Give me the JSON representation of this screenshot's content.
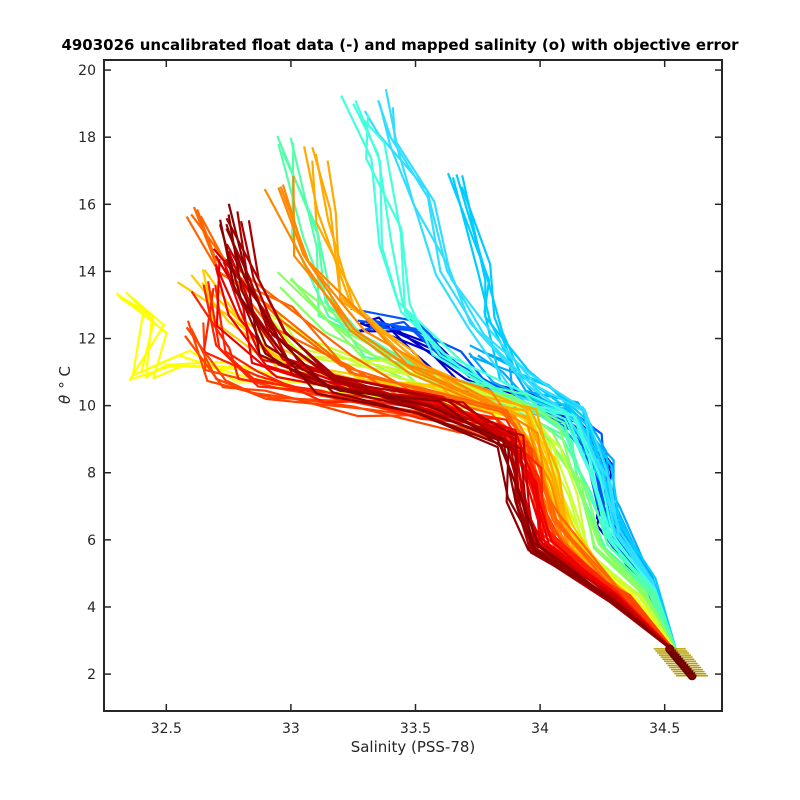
{
  "chart_data": {
    "type": "line",
    "title": "4903026 uncalibrated float data (-) and mapped salinity (o) with objective error",
    "xlabel": "Salinity (PSS-78)",
    "ylabel_symbol": "θ",
    "ylabel_unit": "° C",
    "xlim": [
      32.25,
      34.73
    ],
    "ylim": [
      0.9,
      20.3
    ],
    "x_ticks": [
      32.5,
      33,
      33.5,
      34,
      34.5
    ],
    "x_tick_labels": [
      "32.5",
      "33",
      "33.5",
      "34",
      "34.5"
    ],
    "y_ticks": [
      2,
      4,
      6,
      8,
      10,
      12,
      14,
      16,
      18,
      20
    ],
    "y_tick_labels": [
      "2",
      "4",
      "6",
      "8",
      "10",
      "12",
      "14",
      "16",
      "18",
      "20"
    ],
    "grid": false,
    "legend": "none",
    "colormap": "jet (profile index: early = blue, late = dark red)",
    "mapped_salinity_marker": {
      "color": "#8b0000",
      "error_bar_color": "#b8a000",
      "S_range": [
        34.52,
        34.61
      ],
      "theta_range": [
        1.95,
        2.75
      ]
    },
    "series": [
      {
        "color": "#0000cc",
        "points": [
          [
            33.25,
            12.2
          ],
          [
            33.4,
            12.4
          ],
          [
            33.55,
            11.6
          ],
          [
            33.7,
            10.8
          ],
          [
            33.95,
            10.0
          ],
          [
            34.15,
            9.5
          ],
          [
            34.25,
            8.3
          ],
          [
            34.25,
            6.5
          ],
          [
            34.4,
            4.8
          ],
          [
            34.55,
            2.6
          ]
        ]
      },
      {
        "color": "#0055ff",
        "points": [
          [
            33.3,
            12.6
          ],
          [
            33.5,
            12.2
          ],
          [
            33.65,
            11.3
          ],
          [
            33.85,
            10.3
          ],
          [
            34.05,
            9.8
          ],
          [
            34.2,
            8.9
          ],
          [
            34.25,
            7.0
          ],
          [
            34.42,
            4.9
          ],
          [
            34.55,
            2.6
          ]
        ]
      },
      {
        "color": "#00aaff",
        "points": [
          [
            33.75,
            11.5
          ],
          [
            33.85,
            11.0
          ],
          [
            33.95,
            10.2
          ],
          [
            34.1,
            9.9
          ],
          [
            34.25,
            8.6
          ],
          [
            34.3,
            6.8
          ],
          [
            34.45,
            4.9
          ],
          [
            34.55,
            2.6
          ]
        ]
      },
      {
        "color": "#00ccff",
        "points": [
          [
            33.65,
            16.8
          ],
          [
            33.75,
            14.0
          ],
          [
            33.8,
            12.5
          ],
          [
            33.9,
            11.0
          ],
          [
            34.0,
            10.5
          ],
          [
            34.15,
            9.7
          ],
          [
            34.25,
            8.2
          ],
          [
            34.3,
            6.5
          ],
          [
            34.45,
            4.8
          ],
          [
            34.55,
            2.6
          ]
        ]
      },
      {
        "color": "#33ddff",
        "points": [
          [
            33.35,
            19.1
          ],
          [
            33.4,
            18.0
          ],
          [
            33.55,
            16.2
          ],
          [
            33.6,
            14.0
          ],
          [
            33.75,
            12.2
          ],
          [
            33.95,
            10.6
          ],
          [
            34.15,
            9.6
          ],
          [
            34.25,
            8.0
          ],
          [
            34.3,
            6.2
          ],
          [
            34.45,
            4.7
          ],
          [
            34.55,
            2.6
          ]
        ]
      },
      {
        "color": "#44ffdd",
        "points": [
          [
            33.25,
            19.0
          ],
          [
            33.35,
            17.5
          ],
          [
            33.4,
            15.0
          ],
          [
            33.45,
            13.0
          ],
          [
            33.6,
            11.5
          ],
          [
            33.85,
            10.4
          ],
          [
            34.1,
            9.6
          ],
          [
            34.2,
            8.0
          ],
          [
            34.28,
            6.0
          ],
          [
            34.45,
            4.5
          ],
          [
            34.55,
            2.6
          ]
        ]
      },
      {
        "color": "#55ffaa",
        "points": [
          [
            32.95,
            17.8
          ],
          [
            33.05,
            15.0
          ],
          [
            33.15,
            13.0
          ],
          [
            33.35,
            11.6
          ],
          [
            33.6,
            10.9
          ],
          [
            33.9,
            10.2
          ],
          [
            34.1,
            9.2
          ],
          [
            34.18,
            7.6
          ],
          [
            34.25,
            5.8
          ],
          [
            34.45,
            4.4
          ],
          [
            34.55,
            2.6
          ]
        ]
      },
      {
        "color": "#88ff66",
        "points": [
          [
            33.0,
            13.8
          ],
          [
            33.15,
            12.5
          ],
          [
            33.35,
            11.4
          ],
          [
            33.6,
            10.6
          ],
          [
            33.9,
            10.0
          ],
          [
            34.05,
            9.2
          ],
          [
            34.15,
            7.8
          ],
          [
            34.22,
            5.8
          ],
          [
            34.42,
            4.4
          ],
          [
            34.55,
            2.6
          ]
        ]
      },
      {
        "color": "#ccff33",
        "points": [
          [
            32.9,
            12.8
          ],
          [
            33.1,
            11.8
          ],
          [
            33.35,
            11.0
          ],
          [
            33.65,
            10.4
          ],
          [
            33.9,
            9.8
          ],
          [
            34.05,
            8.8
          ],
          [
            34.12,
            7.4
          ],
          [
            34.2,
            5.6
          ],
          [
            34.4,
            4.3
          ],
          [
            34.55,
            2.6
          ]
        ]
      },
      {
        "color": "#ffff00",
        "points": [
          [
            32.35,
            13.3
          ],
          [
            32.45,
            12.5
          ],
          [
            32.4,
            11.0
          ],
          [
            32.55,
            11.5
          ],
          [
            32.75,
            11.0
          ],
          [
            33.0,
            10.5
          ],
          [
            33.4,
            10.2
          ],
          [
            33.75,
            9.7
          ],
          [
            33.95,
            8.9
          ],
          [
            34.05,
            7.2
          ],
          [
            34.15,
            5.6
          ],
          [
            34.38,
            4.3
          ],
          [
            34.55,
            2.6
          ]
        ]
      },
      {
        "color": "#ffcc00",
        "points": [
          [
            32.6,
            13.9
          ],
          [
            32.75,
            12.5
          ],
          [
            32.95,
            11.4
          ],
          [
            33.25,
            10.8
          ],
          [
            33.6,
            10.3
          ],
          [
            33.9,
            9.6
          ],
          [
            34.02,
            8.2
          ],
          [
            34.1,
            6.4
          ],
          [
            34.3,
            4.6
          ],
          [
            34.55,
            2.6
          ]
        ]
      },
      {
        "color": "#ffaa00",
        "points": [
          [
            33.1,
            17.5
          ],
          [
            33.15,
            15.5
          ],
          [
            33.25,
            13.0
          ],
          [
            33.45,
            11.5
          ],
          [
            33.7,
            10.5
          ],
          [
            33.95,
            9.6
          ],
          [
            34.05,
            7.8
          ],
          [
            34.12,
            5.8
          ],
          [
            34.35,
            4.4
          ],
          [
            34.55,
            2.6
          ]
        ]
      },
      {
        "color": "#ff8800",
        "points": [
          [
            32.95,
            16.5
          ],
          [
            33.05,
            14.5
          ],
          [
            33.25,
            12.3
          ],
          [
            33.5,
            11.0
          ],
          [
            33.75,
            10.2
          ],
          [
            33.95,
            9.4
          ],
          [
            34.02,
            7.6
          ],
          [
            34.1,
            5.6
          ],
          [
            34.35,
            4.3
          ],
          [
            34.55,
            2.6
          ]
        ]
      },
      {
        "color": "#ff6600",
        "points": [
          [
            32.6,
            15.7
          ],
          [
            32.75,
            14.2
          ],
          [
            32.95,
            12.6
          ],
          [
            33.2,
            11.2
          ],
          [
            33.5,
            10.5
          ],
          [
            33.85,
            9.8
          ],
          [
            33.98,
            8.6
          ],
          [
            34.05,
            6.6
          ],
          [
            34.3,
            4.5
          ],
          [
            34.55,
            2.6
          ]
        ]
      },
      {
        "color": "#ff4400",
        "points": [
          [
            32.6,
            12.3
          ],
          [
            32.7,
            10.8
          ],
          [
            32.9,
            10.2
          ],
          [
            33.3,
            9.9
          ],
          [
            33.7,
            9.5
          ],
          [
            33.92,
            8.8
          ],
          [
            34.0,
            7.0
          ],
          [
            34.1,
            5.5
          ],
          [
            34.35,
            4.3
          ],
          [
            34.55,
            2.6
          ]
        ]
      },
      {
        "color": "#ff2200",
        "points": [
          [
            32.65,
            13.6
          ],
          [
            32.7,
            11.8
          ],
          [
            32.85,
            10.8
          ],
          [
            33.15,
            10.3
          ],
          [
            33.55,
            9.9
          ],
          [
            33.85,
            9.4
          ],
          [
            33.97,
            8.0
          ],
          [
            34.03,
            6.2
          ],
          [
            34.3,
            4.4
          ],
          [
            34.55,
            2.6
          ]
        ]
      },
      {
        "color": "#ee0000",
        "points": [
          [
            32.7,
            14.1
          ],
          [
            32.75,
            12.7
          ],
          [
            32.9,
            11.2
          ],
          [
            33.2,
            10.5
          ],
          [
            33.6,
            10.0
          ],
          [
            33.88,
            9.3
          ],
          [
            33.95,
            7.6
          ],
          [
            34.02,
            5.9
          ],
          [
            34.3,
            4.3
          ],
          [
            34.55,
            2.6
          ]
        ]
      },
      {
        "color": "#cc0000",
        "points": [
          [
            32.75,
            14.6
          ],
          [
            32.85,
            12.8
          ],
          [
            33.0,
            11.2
          ],
          [
            33.3,
            10.4
          ],
          [
            33.65,
            9.8
          ],
          [
            33.9,
            9.0
          ],
          [
            33.93,
            7.2
          ],
          [
            34.0,
            5.8
          ],
          [
            34.3,
            4.3
          ],
          [
            34.55,
            2.6
          ]
        ]
      },
      {
        "color": "#aa0000",
        "points": [
          [
            32.8,
            15.5
          ],
          [
            32.85,
            13.8
          ],
          [
            32.95,
            12.0
          ],
          [
            33.2,
            10.7
          ],
          [
            33.6,
            9.9
          ],
          [
            33.88,
            8.9
          ],
          [
            33.92,
            7.0
          ],
          [
            33.98,
            5.7
          ],
          [
            34.28,
            4.2
          ],
          [
            34.55,
            2.6
          ]
        ]
      },
      {
        "color": "#8b0000",
        "points": [
          [
            32.75,
            15.7
          ],
          [
            32.8,
            13.5
          ],
          [
            32.9,
            11.8
          ],
          [
            33.15,
            10.6
          ],
          [
            33.55,
            10.0
          ],
          [
            33.85,
            9.0
          ],
          [
            33.9,
            7.2
          ],
          [
            33.97,
            5.8
          ],
          [
            34.28,
            4.2
          ],
          [
            34.55,
            2.6
          ]
        ]
      }
    ]
  }
}
